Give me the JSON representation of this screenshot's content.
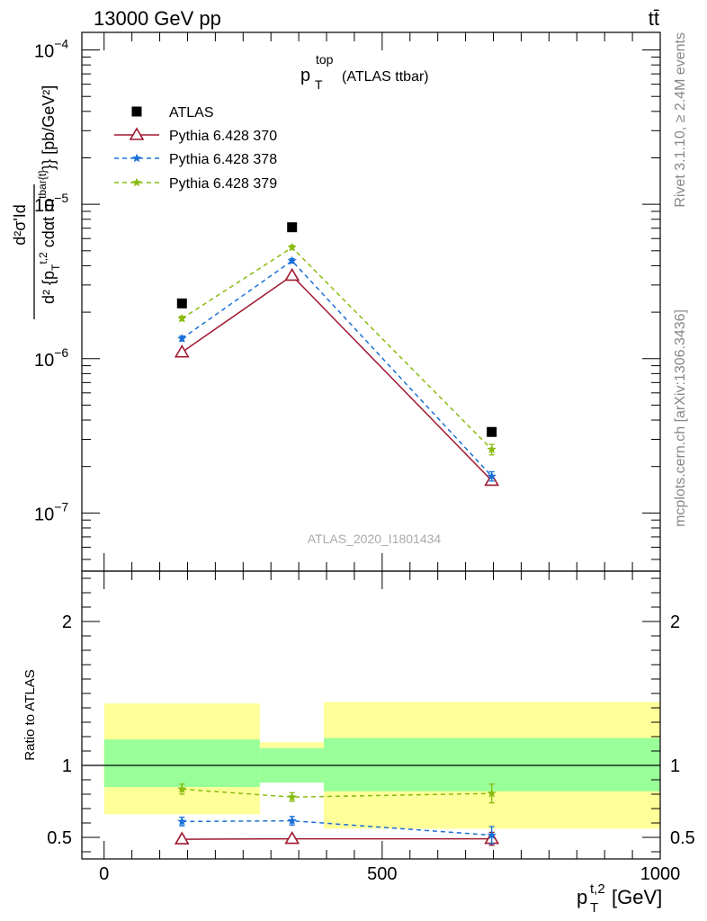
{
  "header": {
    "energy_label": "13000 GeV pp",
    "process_label": "tt̄"
  },
  "side_text": {
    "rivet": "Rivet 3.1.10, ≥ 2.4M events",
    "mcplots": "mcplots.cern.ch [arXiv:1306.3436]"
  },
  "chart_data": [
    {
      "type": "line",
      "title_main": "p",
      "title_sup": "top",
      "title_sub": "T",
      "title_rest": "(ATLAS ttbar)",
      "watermark": "ATLAS_2020_I1801434",
      "ylabel": "d²σ'Id / d² {p_T^{t,2} cdαt m^{tbar{t}}} [pb/GeV²]",
      "ylabel_parts": {
        "num": "d²σ'Id",
        "den_a": "d² {p",
        "den_sub": "T",
        "den_sup": "t,2",
        "den_b": " cdαt m",
        "den_sup2": "tbar{t}",
        "den_c": "}} [pb/GeV²]"
      },
      "yscale": "log",
      "ylim": [
        4.2e-08,
        0.00013
      ],
      "xlim": [
        -40,
        1000
      ],
      "y_tick_labels": [
        {
          "value": 1e-07,
          "base": "10",
          "exp": "−7"
        },
        {
          "value": 1e-06,
          "base": "10",
          "exp": "−6"
        },
        {
          "value": 1e-05,
          "base": "10",
          "exp": "−5"
        },
        {
          "value": 0.0001,
          "base": "10",
          "exp": "−4"
        }
      ],
      "legend": {
        "placement": "top-left",
        "entries": [
          "ATLAS",
          "Pythia 6.428 370",
          "Pythia 6.428 378",
          "Pythia 6.428 379"
        ]
      },
      "series": [
        {
          "name": "ATLAS",
          "marker": "square",
          "color": "#000000",
          "x": [
            140,
            338,
            697
          ],
          "y": [
            2.28e-06,
            7.1e-06,
            3.35e-07
          ],
          "yerr": [
            0,
            0,
            0
          ]
        },
        {
          "name": "Pythia 6.428 370",
          "marker": "triangle",
          "color": "#a01830",
          "dash": "solid",
          "x": [
            140,
            338,
            697
          ],
          "y": [
            1.1e-06,
            3.45e-06,
            1.62e-07
          ],
          "yerr": [
            3e-08,
            8e-08,
            1e-09
          ]
        },
        {
          "name": "Pythia 6.428 378",
          "marker": "star",
          "color": "#1a70d8",
          "dash": "dashed",
          "x": [
            140,
            338,
            697
          ],
          "y": [
            1.35e-06,
            4.3e-06,
            1.73e-07
          ],
          "yerr": [
            5e-08,
            1.4e-07,
            1.2e-08
          ]
        },
        {
          "name": "Pythia 6.428 379",
          "marker": "star",
          "color": "#88bb10",
          "dash": "dashed",
          "x": [
            140,
            338,
            697
          ],
          "y": [
            1.82e-06,
            5.25e-06,
            2.58e-07
          ],
          "yerr": [
            6e-08,
            1.6e-07,
            2e-08
          ]
        }
      ]
    },
    {
      "type": "line",
      "ylabel": "Ratio to ATLAS",
      "xlabel_main": "p",
      "xlabel_sub": "T",
      "xlabel_sup": "t,2",
      "xlabel_rest": " [GeV]",
      "ylim": [
        0.35,
        2.35
      ],
      "xlim": [
        -40,
        1000
      ],
      "y_ticks": [
        0.5,
        1,
        2
      ],
      "y_tick_labels": [
        "0.5",
        "1",
        "2"
      ],
      "x_ticks": [
        0,
        500,
        1000
      ],
      "x_tick_labels": [
        "0",
        "500",
        "1000"
      ],
      "bands": [
        {
          "x0": 0,
          "x1": 280,
          "yellow": [
            0.66,
            1.43
          ],
          "green": [
            0.85,
            1.18
          ]
        },
        {
          "x0": 280,
          "x1": 395,
          "yellow": [
            1.12,
            1.16
          ],
          "green": [
            0.88,
            1.12
          ]
        },
        {
          "x0": 395,
          "x1": 1000,
          "yellow": [
            0.56,
            1.44
          ],
          "green": [
            0.82,
            1.19
          ]
        }
      ],
      "band_colors": {
        "yellow": "#ffff99",
        "green": "#99ff99"
      },
      "series": [
        {
          "name": "Pythia 6.428 370",
          "marker": "triangle",
          "color": "#a01830",
          "dash": "solid",
          "x": [
            140,
            338,
            697
          ],
          "y": [
            0.487,
            0.49,
            0.49
          ],
          "yerr": [
            0.02,
            0.02,
            0.045
          ]
        },
        {
          "name": "Pythia 6.428 378",
          "marker": "star",
          "color": "#1a70d8",
          "dash": "dashed",
          "x": [
            140,
            338,
            697
          ],
          "y": [
            0.61,
            0.615,
            0.515
          ],
          "yerr": [
            0.03,
            0.03,
            0.06
          ]
        },
        {
          "name": "Pythia 6.428 379",
          "marker": "star",
          "color": "#88bb10",
          "dash": "dashed",
          "x": [
            140,
            338,
            697
          ],
          "y": [
            0.835,
            0.78,
            0.805
          ],
          "yerr": [
            0.035,
            0.03,
            0.065
          ]
        }
      ]
    }
  ]
}
